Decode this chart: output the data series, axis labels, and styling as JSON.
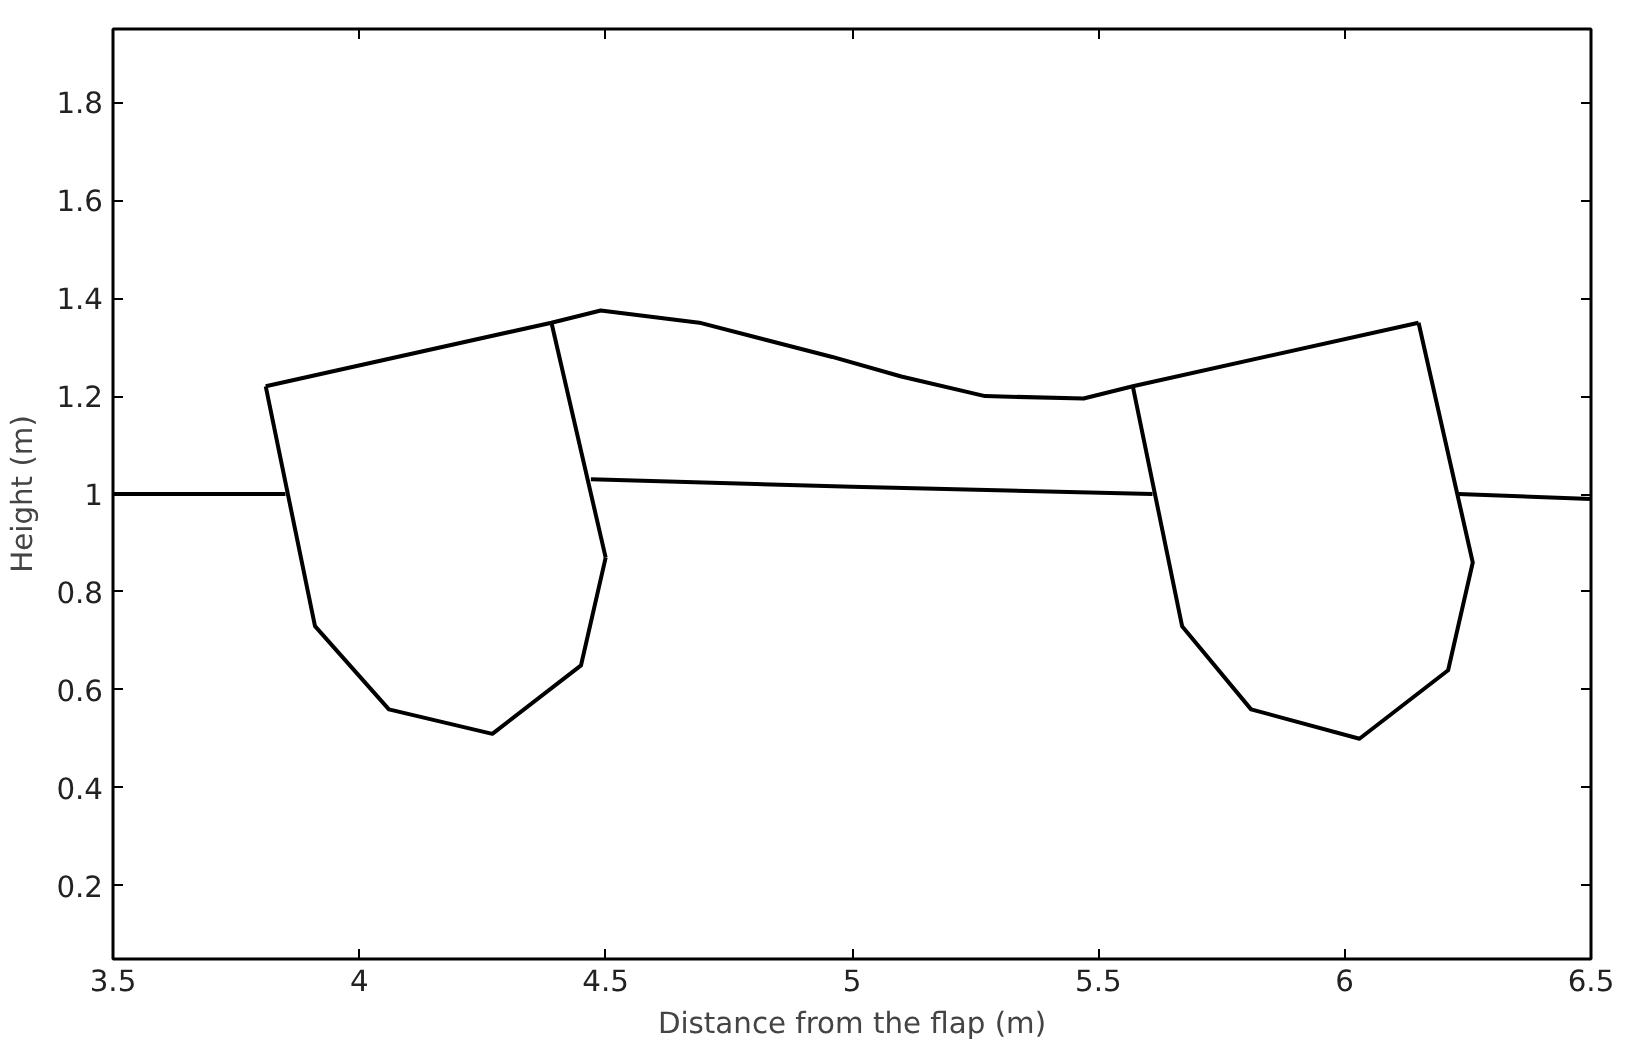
{
  "chart_data": {
    "type": "line",
    "xlabel": "Distance from the flap (m)",
    "ylabel": "Height (m)",
    "xlim": [
      3.5,
      6.5
    ],
    "ylim": [
      0.05,
      1.95
    ],
    "xticks": [
      3.5,
      4,
      4.5,
      5,
      5.5,
      6,
      6.5
    ],
    "yticks": [
      0.2,
      0.4,
      0.6,
      0.8,
      1,
      1.2,
      1.4,
      1.6,
      1.8
    ],
    "grid": false,
    "marker": "none",
    "line_style": "solid",
    "series": [
      {
        "color": "#000000",
        "x": [
          3.81,
          4.39,
          4.49,
          4.69,
          4.96,
          5.1,
          5.27,
          5.47,
          5.57,
          6.15
        ],
        "values": [
          1.22,
          1.35,
          1.375,
          1.35,
          1.28,
          1.24,
          1.2,
          1.195,
          1.22,
          1.35
        ]
      },
      {
        "color": "#000000",
        "x": [
          3.81,
          3.91,
          4.06,
          4.27,
          4.45,
          4.5
        ],
        "values": [
          1.22,
          0.73,
          0.56,
          0.51,
          0.65,
          0.87
        ]
      },
      {
        "color": "#000000",
        "x": [
          4.39,
          4.5
        ],
        "values": [
          1.35,
          0.87
        ]
      },
      {
        "color": "#000000",
        "x": [
          5.57,
          5.67,
          5.81,
          6.03,
          6.21,
          6.26,
          6.15
        ],
        "values": [
          1.22,
          0.73,
          0.56,
          0.5,
          0.64,
          0.86,
          1.35
        ]
      },
      {
        "color": "#000000",
        "x": [
          3.5,
          3.85
        ],
        "values": [
          1.0,
          1.0
        ]
      },
      {
        "color": "#000000",
        "x": [
          4.47,
          5.0,
          5.61
        ],
        "values": [
          1.03,
          1.015,
          1.0
        ]
      },
      {
        "color": "#000000",
        "x": [
          6.23,
          6.5
        ],
        "values": [
          1.0,
          0.99
        ]
      }
    ]
  }
}
